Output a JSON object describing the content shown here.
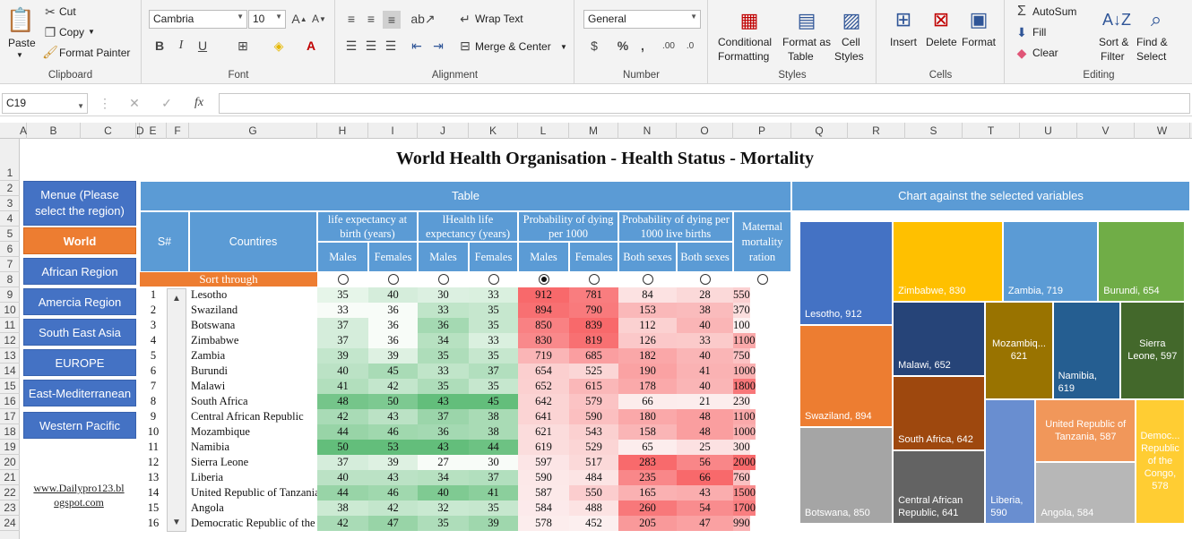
{
  "ribbon": {
    "clipboard": {
      "group": "Clipboard",
      "paste": "Paste",
      "cut": "Cut",
      "copy": "Copy",
      "format_painter": "Format Painter"
    },
    "font": {
      "group": "Font",
      "family": "Cambria",
      "size": "10"
    },
    "alignment": {
      "group": "Alignment",
      "wrap": "Wrap Text",
      "merge": "Merge & Center"
    },
    "number": {
      "group": "Number",
      "format": "General"
    },
    "styles": {
      "group": "Styles",
      "conditional_1": "Conditional",
      "conditional_2": "Formatting",
      "format_table_1": "Format as",
      "format_table_2": "Table",
      "cell_styles_1": "Cell",
      "cell_styles_2": "Styles"
    },
    "cells": {
      "group": "Cells",
      "insert": "Insert",
      "delete": "Delete",
      "format": "Format"
    },
    "editing": {
      "group": "Editing",
      "autosum": "AutoSum",
      "fill": "Fill",
      "clear": "Clear",
      "sort_1": "Sort &",
      "sort_2": "Filter",
      "find_1": "Find &",
      "find_2": "Select"
    }
  },
  "formula_bar": {
    "name_box": "C19",
    "fx": "fx"
  },
  "columns": [
    "A",
    "B",
    "C",
    "D",
    "E",
    "F",
    "G",
    "H",
    "I",
    "J",
    "K",
    "L",
    "M",
    "N",
    "O",
    "P",
    "Q",
    "R",
    "S",
    "T",
    "U",
    "V",
    "W"
  ],
  "rows": [
    "1",
    "2",
    "3",
    "4",
    "5",
    "6",
    "7",
    "8",
    "9",
    "10",
    "11",
    "12",
    "13",
    "14",
    "15",
    "16",
    "17",
    "18",
    "19",
    "20",
    "21",
    "22",
    "23",
    "24"
  ],
  "title": "World Health Organisation - Health Status - Mortality",
  "nav": {
    "header": "Menue (Please select the region)",
    "items": [
      "World",
      "African Region",
      "Amercia Region",
      "South East Asia",
      "EUROPE",
      "East-Mediterranean",
      "Western Pacific"
    ],
    "selected": "World",
    "website_1": "www.Dailypro123.bl",
    "website_2": "ogspot.com"
  },
  "table": {
    "title": "Table",
    "sn": "S#",
    "countries": "Countires",
    "group_life": "life expectancy at birth (years)",
    "group_health": "lHealth life expectancy (years)",
    "group_prob": "Probability of dying per 1000",
    "group_prob_births": "Probability of dying per 1000 live births",
    "group_maternal": "Maternal mortality ration",
    "sub": [
      "Males",
      "Females",
      "Males",
      "Females",
      "Males",
      "Females",
      "Both sexes",
      "Both sexes"
    ],
    "sort_label": "Sort through",
    "selected_sort": 4,
    "rows": [
      {
        "n": "1",
        "country": "Lesotho",
        "v": [
          35,
          40,
          30,
          33,
          912,
          781,
          84,
          28,
          550
        ]
      },
      {
        "n": "2",
        "country": "Swaziland",
        "v": [
          33,
          36,
          33,
          35,
          894,
          790,
          153,
          38,
          370
        ]
      },
      {
        "n": "3",
        "country": "Botswana",
        "v": [
          37,
          36,
          36,
          35,
          850,
          839,
          112,
          40,
          100
        ]
      },
      {
        "n": "4",
        "country": "Zimbabwe",
        "v": [
          37,
          36,
          34,
          33,
          830,
          819,
          126,
          33,
          1100
        ]
      },
      {
        "n": "5",
        "country": "Zambia",
        "v": [
          39,
          39,
          35,
          35,
          719,
          685,
          182,
          40,
          750
        ]
      },
      {
        "n": "6",
        "country": "Burundi",
        "v": [
          40,
          45,
          33,
          37,
          654,
          525,
          190,
          41,
          1000
        ]
      },
      {
        "n": "7",
        "country": "Malawi",
        "v": [
          41,
          42,
          35,
          35,
          652,
          615,
          178,
          40,
          1800
        ]
      },
      {
        "n": "8",
        "country": "South Africa",
        "v": [
          48,
          50,
          43,
          45,
          642,
          579,
          66,
          21,
          230
        ]
      },
      {
        "n": "9",
        "country": "Central African Republic",
        "v": [
          42,
          43,
          37,
          38,
          641,
          590,
          180,
          48,
          1100
        ]
      },
      {
        "n": "10",
        "country": "Mozambique",
        "v": [
          44,
          46,
          36,
          38,
          621,
          543,
          158,
          48,
          1000
        ]
      },
      {
        "n": "11",
        "country": "Namibia",
        "v": [
          50,
          53,
          43,
          44,
          619,
          529,
          65,
          25,
          300
        ]
      },
      {
        "n": "12",
        "country": "Sierra Leone",
        "v": [
          37,
          39,
          27,
          30,
          597,
          517,
          283,
          56,
          2000
        ]
      },
      {
        "n": "13",
        "country": "Liberia",
        "v": [
          40,
          43,
          34,
          37,
          590,
          484,
          235,
          66,
          760
        ]
      },
      {
        "n": "14",
        "country": "United Republic of Tanzania",
        "v": [
          44,
          46,
          40,
          41,
          587,
          550,
          165,
          43,
          1500
        ]
      },
      {
        "n": "15",
        "country": "Angola",
        "v": [
          38,
          42,
          32,
          35,
          584,
          488,
          260,
          54,
          1700
        ]
      },
      {
        "n": "16",
        "country": "Democratic Republic of the Congo",
        "v": [
          42,
          47,
          35,
          39,
          578,
          452,
          205,
          47,
          990
        ]
      }
    ]
  },
  "chart": {
    "title": "Chart against the selected variables",
    "colors": {
      "blue": "#4472c4",
      "orange": "#ed7d31",
      "gray": "#a5a5a5",
      "gold": "#ffc000",
      "lightblue": "#5b9bd5",
      "green": "#70ad47",
      "navy": "#264478",
      "rust": "#9e480e",
      "darkgray": "#636363",
      "olive": "#997300",
      "steel": "#255e91",
      "darkgreen": "#43682b",
      "lblue2": "#698ed0",
      "lorange": "#f1975a",
      "lgray": "#b7b7b7",
      "lgold": "#ffcd33"
    }
  },
  "chart_data": {
    "type": "treemap",
    "title": "Chart against the selected variables",
    "labels": [
      "Lesotho",
      "Swaziland",
      "Botswana",
      "Zimbabwe",
      "Zambia",
      "Burundi",
      "Malawi",
      "South Africa",
      "Central African Republic",
      "Mozambique",
      "Namibia",
      "Sierra Leone",
      "Liberia",
      "United Republic of Tanzania",
      "Angola",
      "Democratic Republic of the Congo"
    ],
    "values": [
      912,
      894,
      850,
      830,
      719,
      654,
      652,
      642,
      641,
      621,
      619,
      597,
      590,
      587,
      584,
      578
    ],
    "tiles": [
      {
        "label": "Lesotho, 912",
        "color": "#4472c4"
      },
      {
        "label": "Swaziland, 894",
        "color": "#ed7d31"
      },
      {
        "label": "Botswana, 850",
        "color": "#a5a5a5"
      },
      {
        "label": "Zimbabwe, 830",
        "color": "#ffc000"
      },
      {
        "label": "Zambia, 719",
        "color": "#5b9bd5"
      },
      {
        "label": "Burundi, 654",
        "color": "#70ad47"
      },
      {
        "label": "Malawi, 652",
        "color": "#264478"
      },
      {
        "label": "South Africa, 642",
        "color": "#9e480e"
      },
      {
        "label": "Central African Republic, 641",
        "color": "#636363"
      },
      {
        "label": "Mozambiq... 621",
        "color": "#997300"
      },
      {
        "label": "Namibia, 619",
        "color": "#255e91"
      },
      {
        "label": "Sierra Leone, 597",
        "color": "#43682b"
      },
      {
        "label": "Liberia, 590",
        "color": "#698ed0"
      },
      {
        "label": "United Republic of Tanzania, 587",
        "color": "#f1975a"
      },
      {
        "label": "Angola, 584",
        "color": "#b7b7b7"
      },
      {
        "label": "Democ... Republic of the Congo, 578",
        "color": "#ffcd33"
      }
    ]
  }
}
